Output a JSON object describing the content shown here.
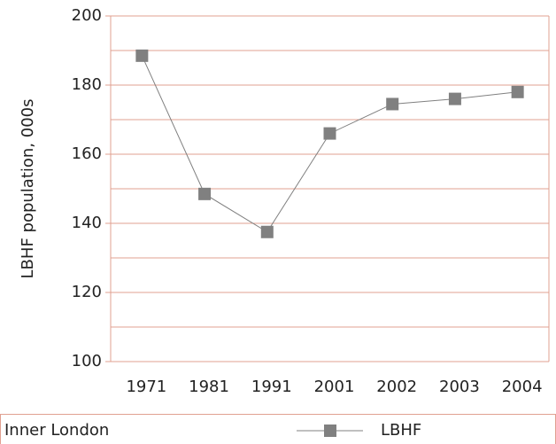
{
  "chart_data": {
    "type": "line",
    "categories": [
      "1971",
      "1981",
      "1991",
      "2001",
      "2002",
      "2003",
      "2004"
    ],
    "series": [
      {
        "name": "Inner London",
        "color": "#808080",
        "values": [
          null,
          null,
          null,
          null,
          null,
          null,
          null
        ]
      },
      {
        "name": "LBHF",
        "color": "#808080",
        "values": [
          188.5,
          148.5,
          137.5,
          166,
          174.5,
          176,
          178
        ]
      }
    ],
    "ylabel": "LBHF population, 000s",
    "ylim": [
      100,
      200
    ],
    "yticks": [
      100,
      120,
      140,
      160,
      180,
      200
    ],
    "minor_yticks": [
      110,
      130,
      150,
      170,
      190
    ],
    "grid": true,
    "legend": "bottom"
  }
}
